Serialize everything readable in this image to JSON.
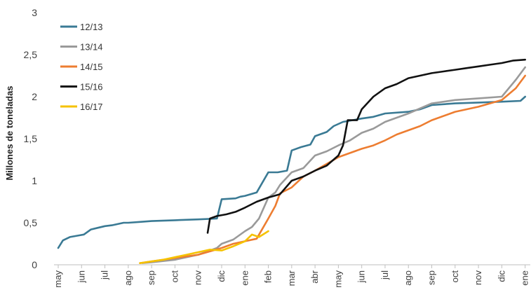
{
  "chart_data": {
    "type": "line",
    "title": "",
    "xlabel": "",
    "ylabel": "Millones de toneladas",
    "ylim": [
      0,
      3
    ],
    "yticks": [
      "0",
      "0,5",
      "1",
      "1,5",
      "2",
      "2,5",
      "3"
    ],
    "categories": [
      "may",
      "jun",
      "jul",
      "ago",
      "sep",
      "oct",
      "nov",
      "dic",
      "ene",
      "feb",
      "mar",
      "abr",
      "may",
      "jun",
      "jul",
      "ago",
      "sep",
      "oct",
      "nov",
      "dic",
      "ene"
    ],
    "x_unit": "month index (0 = may)",
    "legend_position": "top-left",
    "grid": false,
    "series": [
      {
        "name": "12/13",
        "color": "#3a7a94",
        "x": [
          0,
          0.2,
          0.5,
          0.9,
          1.1,
          1.4,
          1.7,
          2,
          2.3,
          2.8,
          3,
          3.5,
          4,
          5,
          6,
          6.8,
          7,
          7.6,
          7.8,
          8,
          8.5,
          9,
          9.4,
          9.8,
          10,
          10.4,
          10.8,
          11,
          11.5,
          11.8,
          12.2,
          13,
          13.5,
          14,
          15,
          15.5,
          16,
          17,
          18,
          19,
          19.8,
          20
        ],
        "values": [
          0.2,
          0.29,
          0.33,
          0.35,
          0.36,
          0.42,
          0.44,
          0.46,
          0.47,
          0.5,
          0.5,
          0.51,
          0.52,
          0.53,
          0.54,
          0.55,
          0.78,
          0.79,
          0.81,
          0.82,
          0.86,
          1.1,
          1.1,
          1.12,
          1.36,
          1.4,
          1.43,
          1.53,
          1.58,
          1.65,
          1.7,
          1.74,
          1.76,
          1.8,
          1.82,
          1.85,
          1.9,
          1.92,
          1.93,
          1.94,
          1.95,
          2.0
        ]
      },
      {
        "name": "13/14",
        "color": "#9a9a9a",
        "x": [
          3.6,
          4,
          5,
          6,
          6.8,
          7,
          7.5,
          8,
          8.3,
          8.6,
          9,
          9.3,
          9.5,
          10,
          10.5,
          11,
          11.5,
          12,
          12.5,
          13,
          13.5,
          14,
          14.5,
          15,
          16,
          17,
          18,
          19,
          19.6,
          20
        ],
        "values": [
          0.02,
          0.03,
          0.06,
          0.12,
          0.2,
          0.25,
          0.3,
          0.4,
          0.45,
          0.55,
          0.8,
          0.86,
          0.95,
          1.1,
          1.15,
          1.3,
          1.35,
          1.42,
          1.48,
          1.57,
          1.62,
          1.7,
          1.75,
          1.8,
          1.92,
          1.96,
          1.98,
          2.0,
          2.2,
          2.35
        ]
      },
      {
        "name": "14/15",
        "color": "#ed7d31",
        "x": [
          3.5,
          4,
          5,
          6,
          7,
          7.5,
          8,
          8.5,
          9,
          9.3,
          9.5,
          10,
          10.5,
          11,
          11.5,
          12,
          12.5,
          13,
          13.5,
          14,
          14.5,
          15,
          15.5,
          16,
          17,
          18,
          19,
          19.6,
          20
        ],
        "values": [
          0.02,
          0.04,
          0.08,
          0.12,
          0.2,
          0.25,
          0.28,
          0.31,
          0.55,
          0.7,
          0.85,
          0.92,
          1.05,
          1.12,
          1.2,
          1.28,
          1.33,
          1.38,
          1.42,
          1.48,
          1.55,
          1.6,
          1.65,
          1.72,
          1.82,
          1.88,
          1.96,
          2.1,
          2.25
        ]
      },
      {
        "name": "15/16",
        "color": "#111111",
        "x": [
          6.4,
          6.5,
          6.8,
          7.2,
          7.6,
          8,
          8.5,
          9,
          9.5,
          10,
          10.5,
          11,
          11.5,
          12,
          12.2,
          12.4,
          12.8,
          13,
          13.5,
          14,
          14.5,
          15,
          15.5,
          16,
          16.5,
          17,
          17.5,
          18,
          18.5,
          19,
          19.5,
          20
        ],
        "values": [
          0.38,
          0.55,
          0.58,
          0.6,
          0.63,
          0.68,
          0.75,
          0.8,
          0.84,
          1.0,
          1.05,
          1.12,
          1.18,
          1.3,
          1.42,
          1.72,
          1.72,
          1.85,
          2.0,
          2.1,
          2.15,
          2.22,
          2.25,
          2.28,
          2.3,
          2.32,
          2.34,
          2.36,
          2.38,
          2.4,
          2.43,
          2.44
        ]
      },
      {
        "name": "16/17",
        "color": "#f5c200",
        "x": [
          3.5,
          4,
          4.5,
          5,
          5.5,
          6,
          6.5,
          7,
          7.5,
          8,
          8.3,
          8.6,
          9
        ],
        "values": [
          0.02,
          0.04,
          0.06,
          0.09,
          0.12,
          0.15,
          0.18,
          0.17,
          0.22,
          0.28,
          0.36,
          0.33,
          0.4
        ]
      }
    ]
  }
}
